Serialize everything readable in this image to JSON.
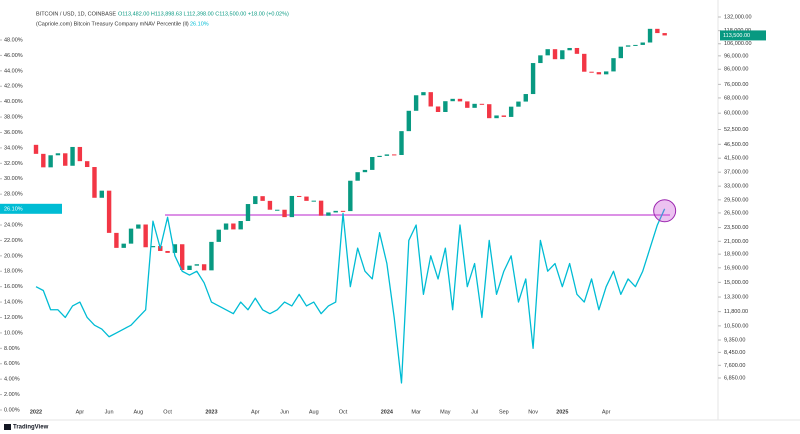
{
  "chart_data": {
    "type": "candlestick",
    "ohlc_readout": "O113,482.00 H113,898.63 L112,398.00 C113,500.00 +18.00 (+0.02%)",
    "categories": [
      "2022",
      null,
      null,
      null,
      null,
      null,
      "Apr",
      null,
      null,
      null,
      "Jun",
      null,
      null,
      null,
      "Aug",
      null,
      null,
      null,
      "Oct",
      null,
      null,
      null,
      null,
      null,
      "2023",
      null,
      null,
      null,
      null,
      null,
      "Apr",
      null,
      null,
      null,
      "Jun",
      null,
      null,
      null,
      "Aug",
      null,
      null,
      null,
      "Oct",
      null,
      null,
      null,
      null,
      null,
      "2024",
      null,
      null,
      null,
      "Mar",
      null,
      null,
      null,
      "May",
      null,
      null,
      null,
      "Jul",
      null,
      null,
      null,
      "Sep",
      null,
      null,
      null,
      "Nov",
      null,
      null,
      null,
      "2025",
      null,
      null,
      null,
      null,
      null,
      "Apr",
      null,
      null,
      null,
      null,
      null,
      null,
      null,
      null
    ],
    "series": [
      {
        "name": "BITCOIN / USD, 1D, COINBASE",
        "type": "candlestick",
        "axis": "y2",
        "up_color": "#089981",
        "down_color": "#f23645",
        "open": [
          46300,
          43000,
          38500,
          42500,
          43200,
          39000,
          45500,
          40500,
          38600,
          30000,
          31800,
          22500,
          19900,
          20600,
          23300,
          24100,
          20000,
          20200,
          19400,
          19100,
          20500,
          16600,
          17200,
          17400,
          16550,
          20900,
          23100,
          24300,
          23150,
          24800,
          28500,
          30400,
          29250,
          27200,
          27200,
          25600,
          30450,
          30300,
          29250,
          29300,
          25900,
          26600,
          26950,
          26900,
          34500,
          37000,
          37700,
          41900,
          42300,
          42800,
          42600,
          51800,
          61200,
          69500,
          71300,
          63400,
          60600,
          66200,
          67500,
          66100,
          62700,
          64800,
          64600,
          57600,
          58900,
          58200,
          63300,
          66000,
          70200,
          90500,
          96400,
          101400,
          93400,
          100500,
          102400,
          97600,
          84300,
          84000,
          82500,
          84500,
          94200,
          103500,
          104600,
          105000,
          107100,
          119800,
          115700
        ],
        "close": [
          43000,
          38500,
          42500,
          43200,
          39000,
          45500,
          40500,
          38600,
          30000,
          31800,
          22500,
          19900,
          20600,
          23300,
          24100,
          20000,
          20200,
          19400,
          19100,
          20500,
          16600,
          17200,
          17400,
          16550,
          20900,
          23100,
          24300,
          23150,
          24800,
          28500,
          30400,
          29250,
          27200,
          27200,
          25600,
          30450,
          30300,
          29250,
          29300,
          25900,
          26600,
          26950,
          26900,
          34500,
          37000,
          37700,
          41900,
          42300,
          42800,
          42600,
          51800,
          61200,
          69500,
          71300,
          63400,
          60600,
          66200,
          67500,
          66100,
          62700,
          64800,
          64600,
          57600,
          58900,
          58200,
          63300,
          66000,
          70200,
          90500,
          96400,
          101400,
          93400,
          100500,
          102400,
          97600,
          84300,
          84000,
          82500,
          84500,
          94200,
          103500,
          104600,
          105000,
          107100,
          119800,
          115700,
          113500
        ],
        "last_value_label": "113,500.00"
      },
      {
        "name": "(Capriole.com) Bitcoin Treasury Company mNAV Percentile (ll)",
        "type": "line",
        "color": "#00bcd4",
        "values": [
          16,
          15.5,
          13,
          13,
          12,
          13.5,
          14,
          12,
          11,
          10.5,
          9.5,
          10,
          10.5,
          11,
          12,
          13,
          24.5,
          21,
          25,
          20,
          18,
          17.5,
          18,
          16.5,
          14,
          13.5,
          13,
          12.5,
          14,
          13,
          14.5,
          13,
          12.5,
          13,
          14,
          13.5,
          15,
          13.5,
          14,
          12.5,
          13.5,
          14,
          25.5,
          16,
          21,
          18,
          17,
          23,
          19,
          12,
          3.5,
          22,
          24,
          15,
          20,
          17,
          21,
          13,
          24,
          16,
          19,
          12,
          22,
          15,
          18,
          20,
          14,
          17,
          8,
          22,
          18,
          19,
          16,
          19,
          15,
          14,
          17,
          13,
          16,
          18,
          15,
          17,
          16,
          18,
          21,
          24,
          26.1
        ],
        "last_value_label": "26.10%"
      }
    ],
    "ylim": [
      -0.65,
      52.15
    ],
    "yticks": [
      {
        "value": 0,
        "label": "0.00%"
      },
      {
        "value": 2,
        "label": "2.00%"
      },
      {
        "value": 4,
        "label": "4.00%"
      },
      {
        "value": 6,
        "label": "6.00%"
      },
      {
        "value": 8,
        "label": "8.00%"
      },
      {
        "value": 10,
        "label": "10.00%"
      },
      {
        "value": 12,
        "label": "12.00%"
      },
      {
        "value": 14,
        "label": "14.00%"
      },
      {
        "value": 16,
        "label": "16.00%"
      },
      {
        "value": 18,
        "label": "18.00%"
      },
      {
        "value": 20,
        "label": "20.00%"
      },
      {
        "value": 22,
        "label": "22.00%"
      },
      {
        "value": 24,
        "label": "24.00%"
      },
      {
        "value": 26,
        "label": "26.00%"
      },
      {
        "value": 28,
        "label": "28.00%"
      },
      {
        "value": 30,
        "label": "30.00%"
      },
      {
        "value": 32,
        "label": "32.00%"
      },
      {
        "value": 34,
        "label": "34.00%"
      },
      {
        "value": 36,
        "label": "36.00%"
      },
      {
        "value": 38,
        "label": "38.00%"
      },
      {
        "value": 40,
        "label": "40.00%"
      },
      {
        "value": 42,
        "label": "42.00%"
      },
      {
        "value": 44,
        "label": "44.00%"
      },
      {
        "value": 46,
        "label": "46.00%"
      },
      {
        "value": 48,
        "label": "48.00%"
      }
    ],
    "y2lim": [
      5058,
      142100
    ],
    "y2scale": "log",
    "y2ticks": [
      {
        "value": 132000,
        "label": "132,000.00"
      },
      {
        "value": 118000,
        "label": "118,000.00"
      },
      {
        "value": 106000,
        "label": "106,000.00"
      },
      {
        "value": 96000,
        "label": "96,000.00"
      },
      {
        "value": 86000,
        "label": "86,000.00"
      },
      {
        "value": 76000,
        "label": "76,000.00"
      },
      {
        "value": 68000,
        "label": "68,000.00"
      },
      {
        "value": 60000,
        "label": "60,000.00"
      },
      {
        "value": 52500,
        "label": "52,500.00"
      },
      {
        "value": 46500,
        "label": "46,500.00"
      },
      {
        "value": 41500,
        "label": "41,500.00"
      },
      {
        "value": 37000,
        "label": "37,000.00"
      },
      {
        "value": 33000,
        "label": "33,000.00"
      },
      {
        "value": 29500,
        "label": "29,500.00"
      },
      {
        "value": 26500,
        "label": "26,500.00"
      },
      {
        "value": 23500,
        "label": "23,500.00"
      },
      {
        "value": 21000,
        "label": "21,000.00"
      },
      {
        "value": 18900,
        "label": "18,900.00"
      },
      {
        "value": 16900,
        "label": "16,900.00"
      },
      {
        "value": 15000,
        "label": "15,000.00"
      },
      {
        "value": 13300,
        "label": "13,300.00"
      },
      {
        "value": 11800,
        "label": "11,800.00"
      },
      {
        "value": 10500,
        "label": "10,500.00"
      },
      {
        "value": 9350,
        "label": "9,350.00"
      },
      {
        "value": 8450,
        "label": "8,450.00"
      },
      {
        "value": 7600,
        "label": "7,600.00"
      },
      {
        "value": 6850,
        "label": "6,850.00"
      }
    ],
    "reference_line": {
      "value": 25.3,
      "color": "#c84fd8"
    },
    "watermark": "TradingView"
  }
}
